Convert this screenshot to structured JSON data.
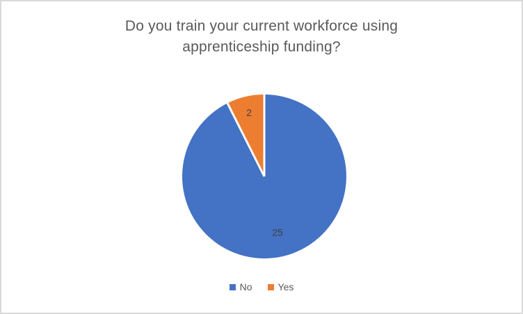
{
  "frame": {
    "background_color": "#ffffff",
    "border_color": "#d9d9d9"
  },
  "chart_data": {
    "type": "pie",
    "title": "Do you train your current workforce using apprenticeship funding?",
    "title_lines": [
      "Do you train your current workforce using",
      "apprenticeship funding?"
    ],
    "categories": [
      "No",
      "Yes"
    ],
    "values": [
      25,
      2
    ],
    "colors": [
      "#4472C4",
      "#ED7D31"
    ],
    "data_labels": [
      "25",
      "2"
    ],
    "start_angle_deg": 0,
    "direction": "clockwise",
    "slice_border_color": "#ffffff",
    "title_color": "#595959",
    "data_label_color": "#404040",
    "legend_position": "bottom",
    "legend": [
      {
        "label": "No",
        "color": "#4472C4"
      },
      {
        "label": "Yes",
        "color": "#ED7D31"
      }
    ]
  }
}
